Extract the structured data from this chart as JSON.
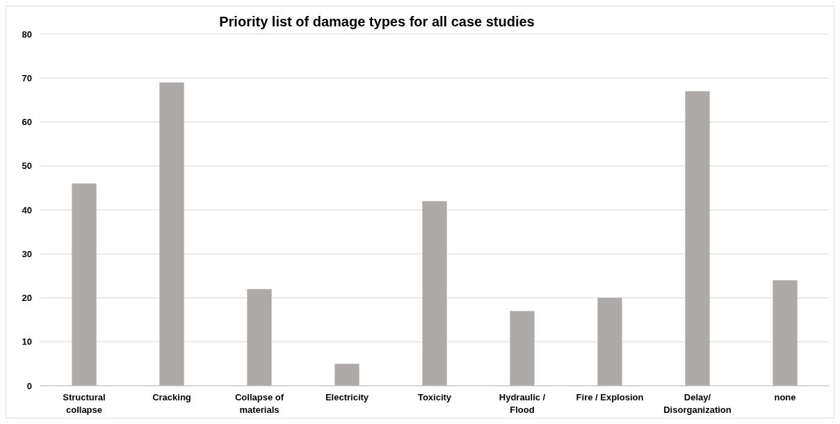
{
  "chart_data": {
    "type": "bar",
    "title": "Priority list of damage types for all case studies",
    "categories": [
      "Structural collapse",
      "Cracking",
      "Collapse of materials",
      "Electricity",
      "Toxicity",
      "Hydraulic / Flood",
      "Fire / Explosion",
      "Delay/ Disorganization",
      "none"
    ],
    "values": [
      46,
      69,
      22,
      5,
      42,
      17,
      20,
      67,
      24
    ],
    "color": "#aeaaaa",
    "ylim": [
      0,
      80
    ],
    "yticks": [
      0,
      10,
      20,
      30,
      40,
      50,
      60,
      70,
      80
    ],
    "grid": "y"
  }
}
